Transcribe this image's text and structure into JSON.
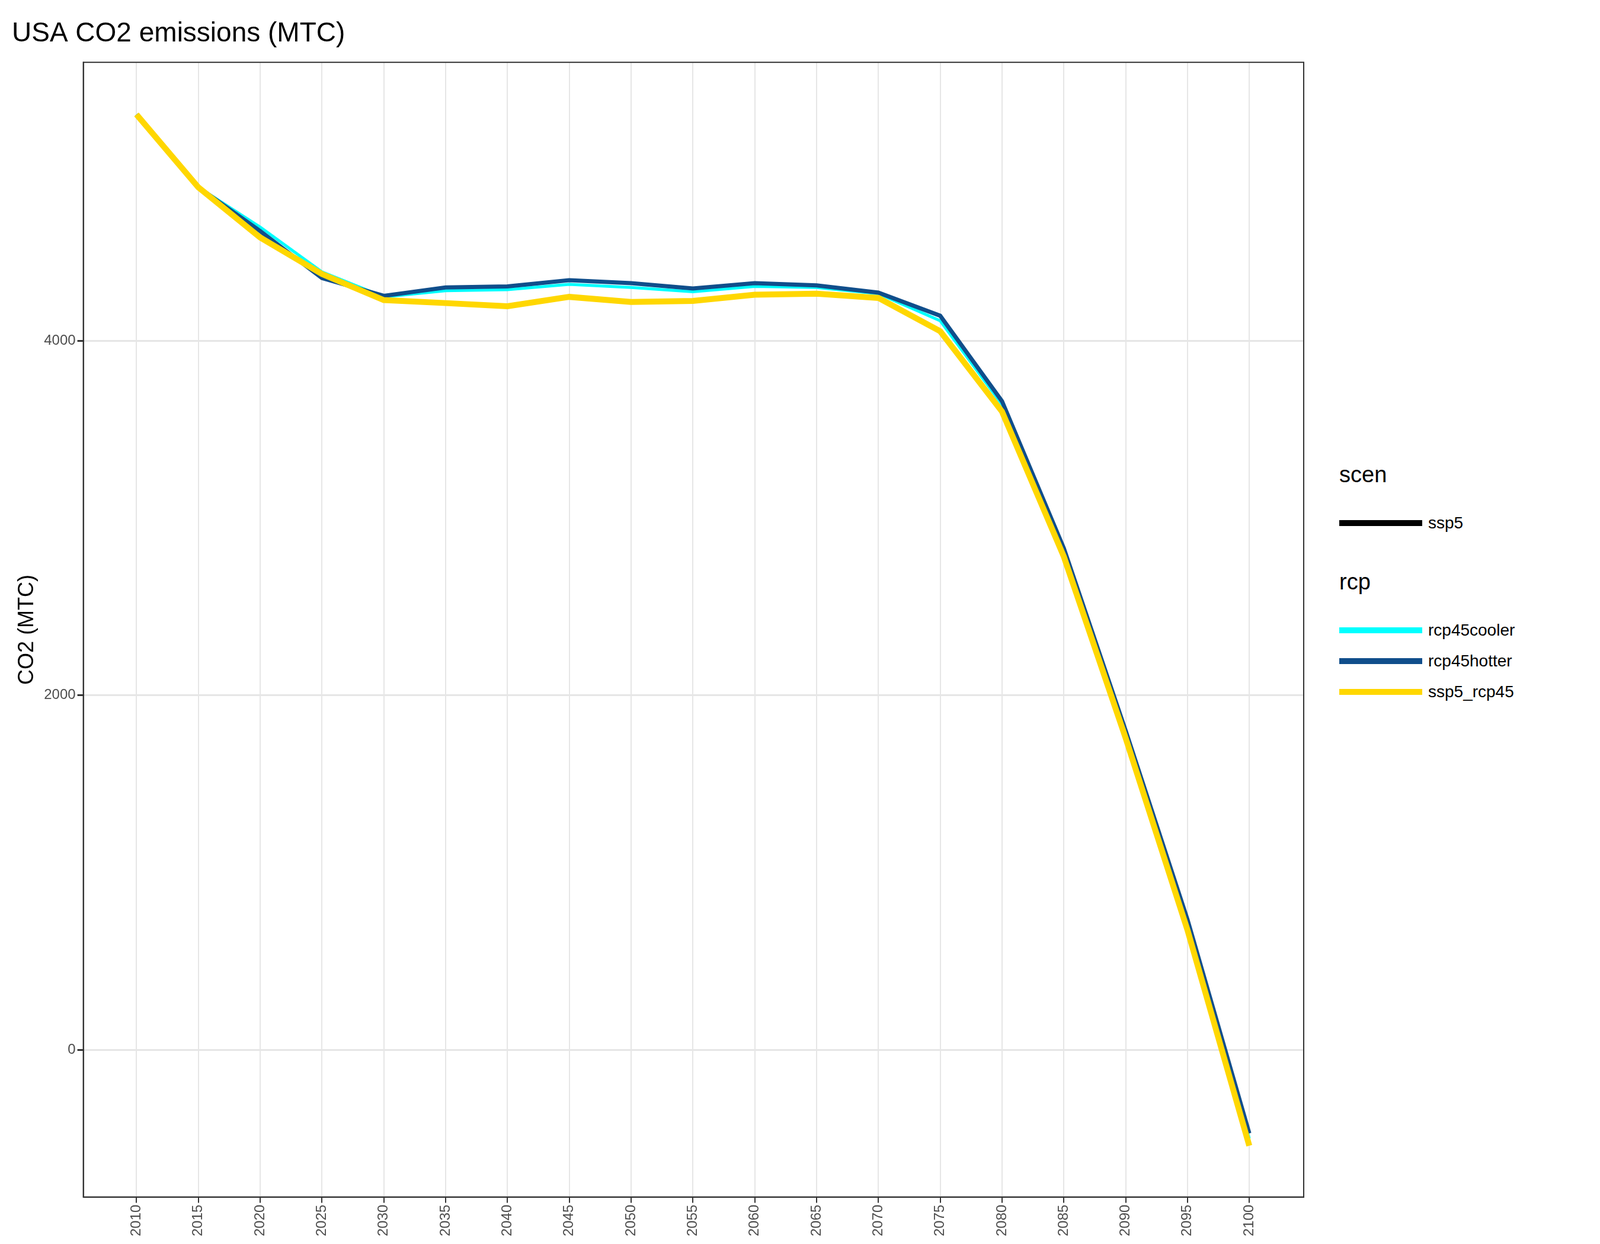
{
  "chart_data": {
    "type": "line",
    "title": "USA CO2 emissions (MTC)",
    "y_label": "CO2 (MTC)",
    "x": [
      2010,
      2015,
      2020,
      2025,
      2030,
      2035,
      2040,
      2045,
      2050,
      2055,
      2060,
      2065,
      2070,
      2075,
      2080,
      2085,
      2090,
      2095,
      2100
    ],
    "series": [
      {
        "name": "rcp45cooler",
        "color": "#00ffff",
        "values": [
          5276,
          4865,
          4641,
          4388,
          4247,
          4282,
          4288,
          4318,
          4300,
          4276,
          4306,
          4300,
          4265,
          4112,
          3640,
          2810,
          1780,
          710,
          -500
        ]
      },
      {
        "name": "rcp45hotter",
        "color": "#104e8b",
        "values": [
          5276,
          4865,
          4618,
          4353,
          4253,
          4300,
          4306,
          4341,
          4324,
          4294,
          4324,
          4312,
          4271,
          4141,
          3659,
          2829,
          1800,
          735,
          -471
        ]
      },
      {
        "name": "ssp5_rcp45",
        "color": "#ffd700",
        "values": [
          5276,
          4865,
          4582,
          4376,
          4229,
          4212,
          4194,
          4247,
          4218,
          4224,
          4259,
          4265,
          4241,
          4053,
          3600,
          2782,
          1759,
          676,
          -541
        ]
      }
    ],
    "xlim": [
      2005.7,
      2104.4
    ],
    "xticks": [
      2010,
      2015,
      2020,
      2025,
      2030,
      2035,
      2040,
      2045,
      2050,
      2055,
      2060,
      2065,
      2070,
      2075,
      2080,
      2085,
      2090,
      2095,
      2100
    ],
    "ylim": [
      -830,
      5570
    ],
    "yticks": [
      0,
      2000,
      4000
    ],
    "grid": true,
    "legend": "right",
    "legend_groups": [
      {
        "title": "scen",
        "items": [
          {
            "name": "ssp5",
            "color": "#000000"
          }
        ]
      },
      {
        "title": "rcp"
      }
    ]
  }
}
